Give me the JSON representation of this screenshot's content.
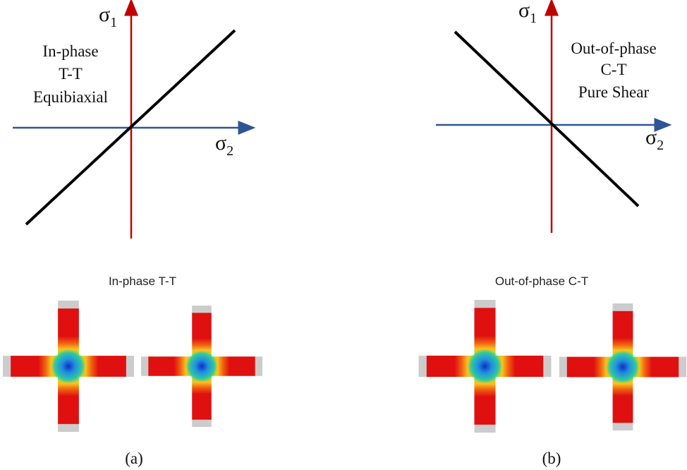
{
  "panels": [
    {
      "axis_y": {
        "symbol": "σ",
        "subscript": "1"
      },
      "axis_x": {
        "symbol": "σ",
        "subscript": "2"
      },
      "label_lines": [
        "In-phase",
        "T-T",
        "Equibiaxial"
      ],
      "specimen_title": "In-phase T-T",
      "caption": "(a)"
    },
    {
      "axis_y": {
        "symbol": "σ",
        "subscript": "1"
      },
      "axis_x": {
        "symbol": "σ",
        "subscript": "2"
      },
      "label_lines": [
        "Out-of-phase",
        "C-T",
        "Pure Shear"
      ],
      "specimen_title": "Out-of-phase C-T",
      "caption": "(b)"
    }
  ]
}
